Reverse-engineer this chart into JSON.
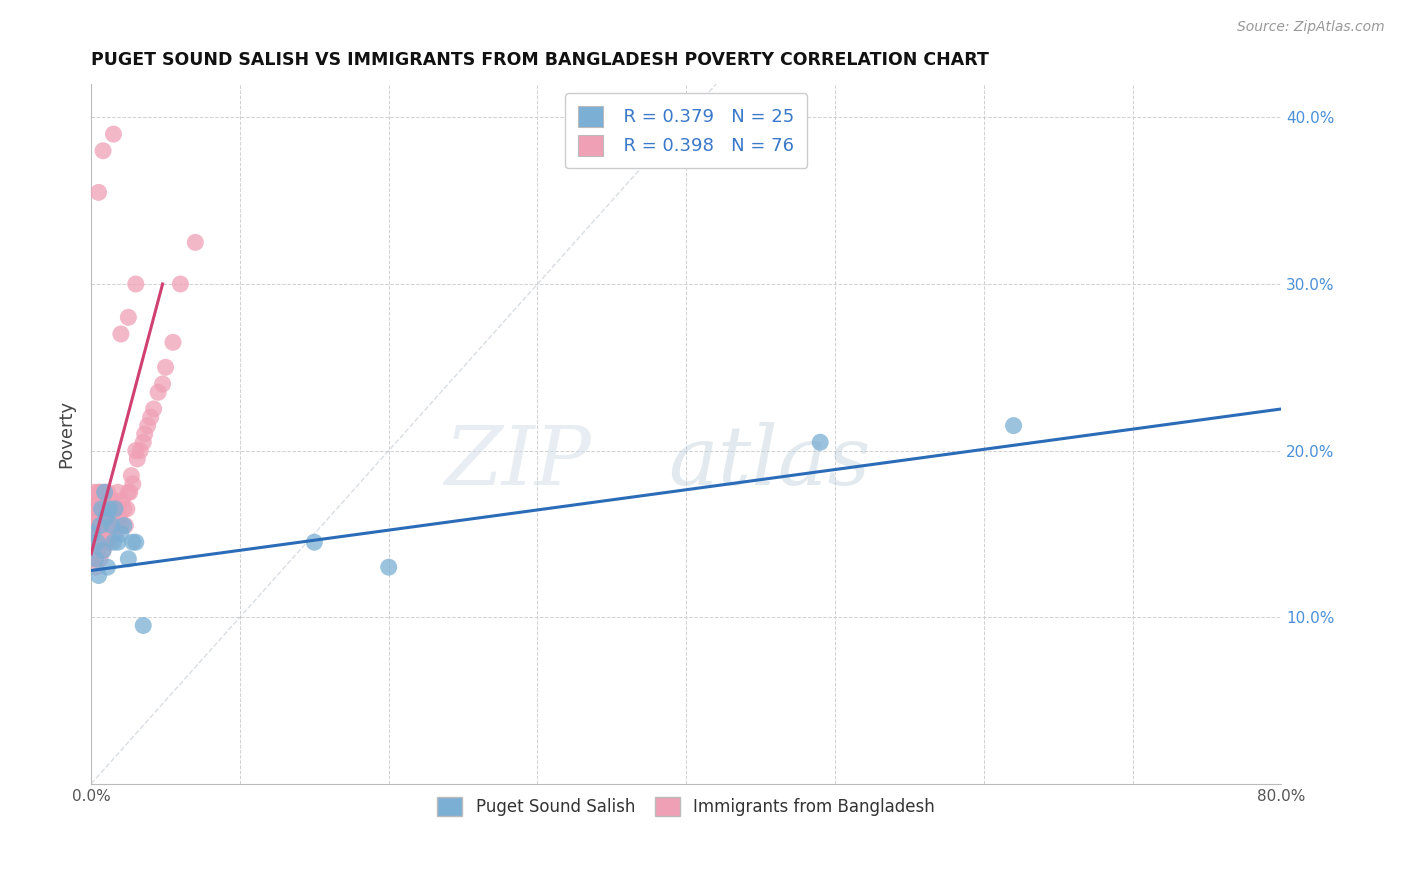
{
  "title": "PUGET SOUND SALISH VS IMMIGRANTS FROM BANGLADESH POVERTY CORRELATION CHART",
  "source": "Source: ZipAtlas.com",
  "ylabel": "Poverty",
  "xlim": [
    0.0,
    0.8
  ],
  "ylim": [
    0.0,
    0.42
  ],
  "xtick_positions": [
    0.0,
    0.1,
    0.2,
    0.3,
    0.4,
    0.5,
    0.6,
    0.7,
    0.8
  ],
  "xticklabels": [
    "0.0%",
    "",
    "",
    "",
    "",
    "",
    "",
    "",
    "80.0%"
  ],
  "ytick_positions": [
    0.0,
    0.1,
    0.2,
    0.3,
    0.4
  ],
  "yticklabels": [
    "",
    "10.0%",
    "20.0%",
    "30.0%",
    "40.0%"
  ],
  "r1": "0.379",
  "n1": "25",
  "r2": "0.398",
  "n2": "76",
  "color_blue": "#7BAFD4",
  "color_pink": "#F0A0B5",
  "color_line_blue": "#2B6CB8",
  "color_line_pink": "#D04070",
  "color_diagonal": "#C0C8D0",
  "background_color": "#FFFFFF",
  "blue_line_x0": 0.0,
  "blue_line_y0": 0.128,
  "blue_line_x1": 0.8,
  "blue_line_y1": 0.225,
  "pink_line_x0": 0.0,
  "pink_line_y0": 0.138,
  "pink_line_x1": 0.048,
  "pink_line_y1": 0.3,
  "blue_x": [
    0.001,
    0.003,
    0.004,
    0.005,
    0.006,
    0.007,
    0.008,
    0.009,
    0.01,
    0.011,
    0.012,
    0.014,
    0.015,
    0.016,
    0.018,
    0.02,
    0.022,
    0.025,
    0.028,
    0.03,
    0.035,
    0.2,
    0.49,
    0.62,
    0.15
  ],
  "blue_y": [
    0.15,
    0.135,
    0.145,
    0.125,
    0.155,
    0.165,
    0.14,
    0.175,
    0.16,
    0.13,
    0.165,
    0.155,
    0.145,
    0.165,
    0.145,
    0.15,
    0.155,
    0.135,
    0.145,
    0.145,
    0.095,
    0.13,
    0.205,
    0.215,
    0.145
  ],
  "pink_x": [
    0.001,
    0.001,
    0.001,
    0.002,
    0.002,
    0.002,
    0.002,
    0.003,
    0.003,
    0.003,
    0.003,
    0.004,
    0.004,
    0.004,
    0.004,
    0.005,
    0.005,
    0.005,
    0.005,
    0.006,
    0.006,
    0.006,
    0.007,
    0.007,
    0.007,
    0.008,
    0.008,
    0.008,
    0.009,
    0.009,
    0.01,
    0.01,
    0.01,
    0.011,
    0.011,
    0.012,
    0.012,
    0.013,
    0.014,
    0.014,
    0.015,
    0.016,
    0.016,
    0.017,
    0.018,
    0.018,
    0.019,
    0.02,
    0.021,
    0.022,
    0.023,
    0.024,
    0.025,
    0.026,
    0.027,
    0.028,
    0.03,
    0.031,
    0.033,
    0.035,
    0.036,
    0.038,
    0.04,
    0.042,
    0.045,
    0.048,
    0.05,
    0.055,
    0.06,
    0.07,
    0.005,
    0.008,
    0.015,
    0.02,
    0.025,
    0.03
  ],
  "pink_y": [
    0.155,
    0.17,
    0.14,
    0.15,
    0.135,
    0.175,
    0.16,
    0.145,
    0.155,
    0.165,
    0.13,
    0.16,
    0.15,
    0.17,
    0.14,
    0.175,
    0.155,
    0.145,
    0.165,
    0.135,
    0.15,
    0.175,
    0.16,
    0.145,
    0.165,
    0.15,
    0.17,
    0.14,
    0.16,
    0.175,
    0.155,
    0.145,
    0.165,
    0.155,
    0.175,
    0.16,
    0.145,
    0.17,
    0.155,
    0.165,
    0.16,
    0.17,
    0.15,
    0.155,
    0.165,
    0.175,
    0.16,
    0.155,
    0.17,
    0.165,
    0.155,
    0.165,
    0.175,
    0.175,
    0.185,
    0.18,
    0.2,
    0.195,
    0.2,
    0.205,
    0.21,
    0.215,
    0.22,
    0.225,
    0.235,
    0.24,
    0.25,
    0.265,
    0.3,
    0.325,
    0.355,
    0.38,
    0.39,
    0.27,
    0.28,
    0.3
  ]
}
